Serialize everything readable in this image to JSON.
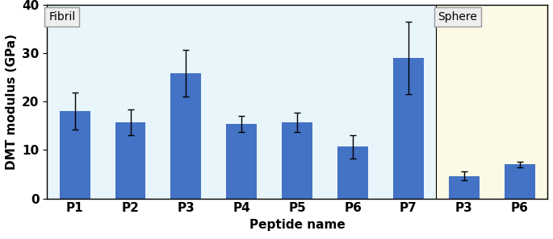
{
  "chart_data": {
    "type": "bar",
    "categories": [
      "P1",
      "P2",
      "P3",
      "P4",
      "P5",
      "P6",
      "P7",
      "P3",
      "P6"
    ],
    "series": [
      {
        "name": "Fibril",
        "color": "#4472c4",
        "values": [
          18.1,
          15.7,
          25.8,
          15.4,
          15.7,
          10.7,
          29.0,
          null,
          null
        ],
        "errors": [
          3.8,
          2.6,
          4.8,
          1.7,
          2.0,
          2.4,
          7.5,
          null,
          null
        ]
      },
      {
        "name": "Sphere",
        "color": "#4472c4",
        "values": [
          null,
          null,
          null,
          null,
          null,
          null,
          null,
          4.6,
          7.0
        ],
        "errors": [
          null,
          null,
          null,
          null,
          null,
          null,
          null,
          0.9,
          0.6
        ]
      }
    ],
    "x_label": "Peptide name",
    "y_label": "DMT modulus (GPa)",
    "ylim": [
      0,
      40
    ],
    "yticks": [
      0,
      10,
      20,
      30,
      40
    ],
    "grid": false
  }
}
